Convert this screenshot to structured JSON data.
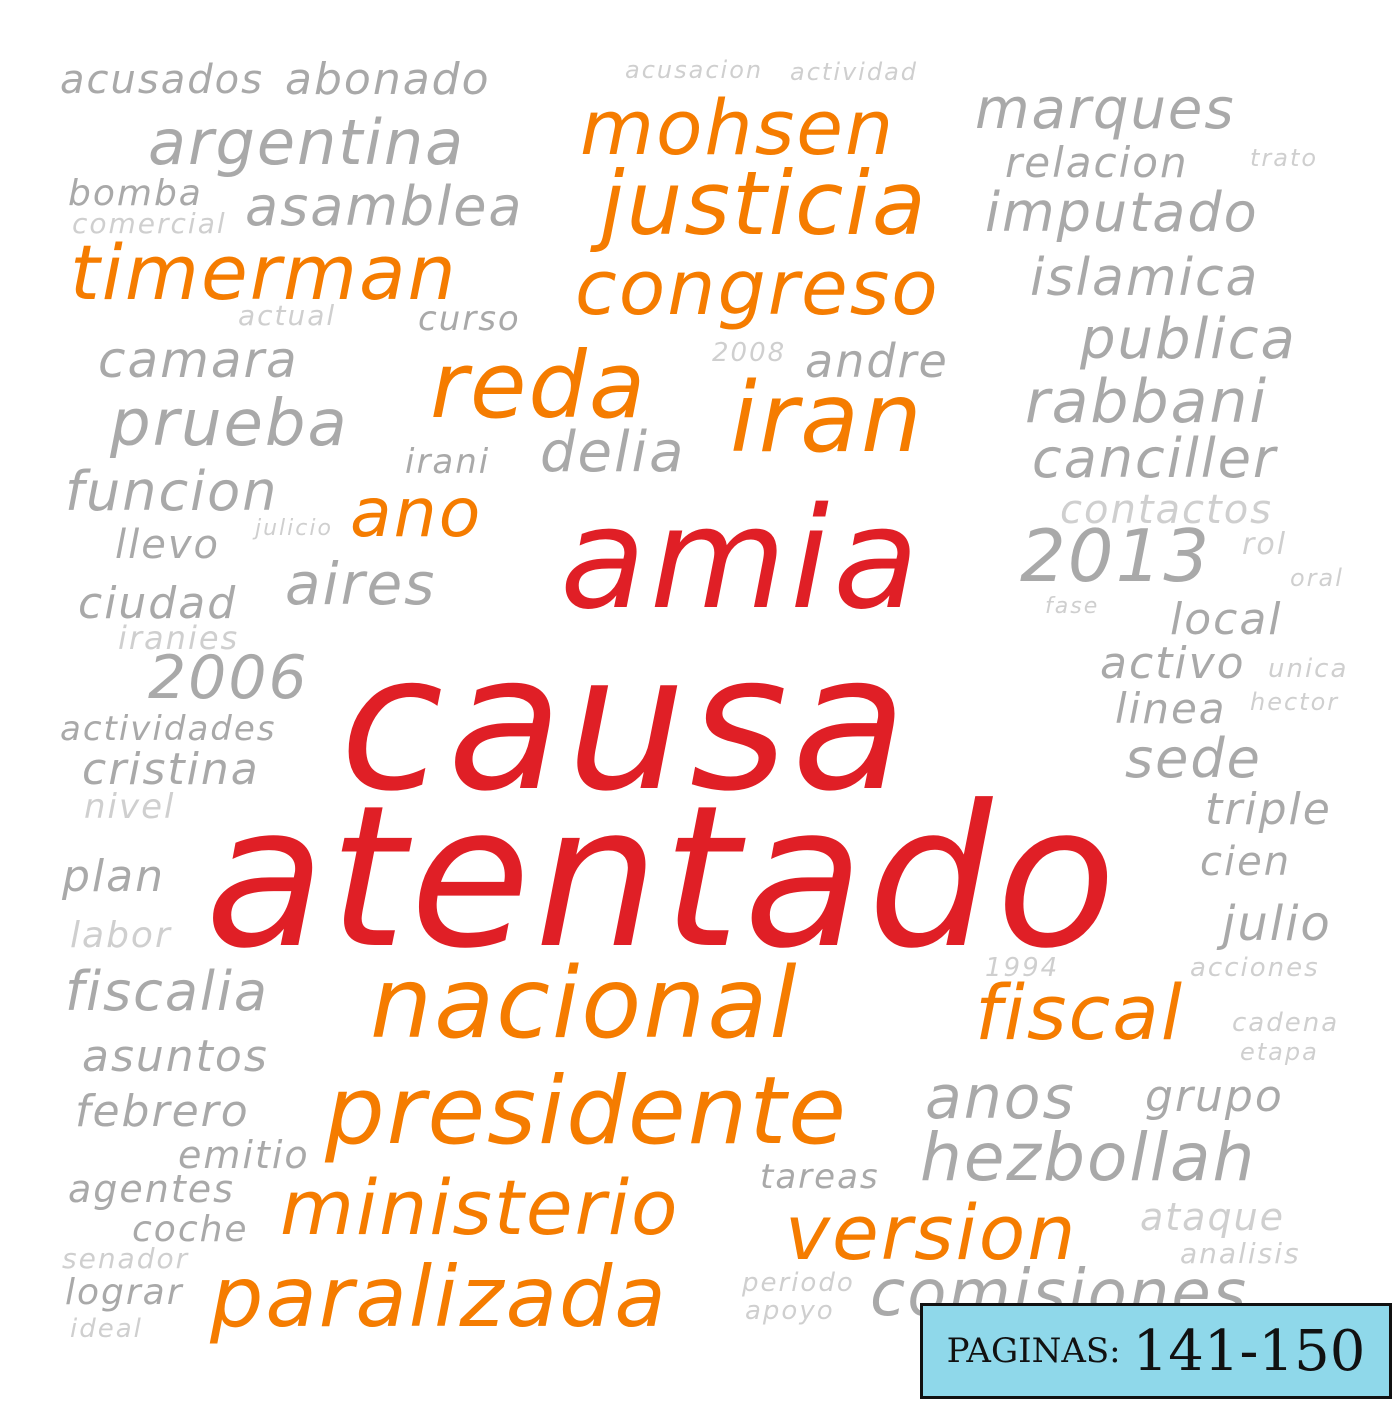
{
  "words": {
    "causa": "causa",
    "atentado": "atentado",
    "amia": "amia",
    "iran": "iran",
    "reda": "reda",
    "ano": "ano",
    "congreso": "congreso",
    "justicia": "justicia",
    "mohsen": "mohsen",
    "timerman": "timerman",
    "nacional": "nacional",
    "fiscal": "fiscal",
    "presidente": "presidente",
    "ministerio": "ministerio",
    "version": "version",
    "paralizada": "paralizada",
    "acusados": "acusados",
    "abonado": "abonado",
    "argentina": "argentina",
    "bomba": "bomba",
    "comercial": "comercial",
    "asamblea": "asamblea",
    "curso": "curso",
    "actual": "actual",
    "camara": "camara",
    "prueba": "prueba",
    "funcion": "funcion",
    "llevo": "llevo",
    "aires": "aires",
    "ciudad": "ciudad",
    "iranies": "iranies",
    "y2006": "2006",
    "actividades": "actividades",
    "cristina": "cristina",
    "nivel": "nivel",
    "plan": "plan",
    "labor": "labor",
    "fiscalia": "fiscalia",
    "asuntos": "asuntos",
    "febrero": "febrero",
    "emitio": "emitio",
    "agentes": "agentes",
    "coche": "coche",
    "senador": "senador",
    "lograr": "lograr",
    "ideal": "ideal",
    "marques": "marques",
    "relacion": "relacion",
    "imputado": "imputado",
    "islamica": "islamica",
    "publica": "publica",
    "rabbani": "rabbani",
    "canciller": "canciller",
    "contactos": "contactos",
    "y2013": "2013",
    "rol": "rol",
    "oral": "oral",
    "local": "local",
    "activo": "activo",
    "unica": "unica",
    "linea": "linea",
    "hector": "hector",
    "sede": "sede",
    "triple": "triple",
    "cien": "cien",
    "julio": "julio",
    "acciones": "acciones",
    "cadena": "cadena",
    "etapa": "etapa",
    "grupo": "grupo",
    "anos": "anos",
    "hezbollah": "hezbollah",
    "ataque": "ataque",
    "analisis": "analisis",
    "comisiones": "comisiones",
    "tareas": "tareas",
    "periodo": "periodo",
    "apoyo": "apoyo",
    "andre": "andre",
    "delia": "delia",
    "irani": "irani",
    "y2008": "2008",
    "y1994": "1994",
    "acusacion": "acusacion",
    "actividad": "actividad",
    "fase": "fase",
    "trato": "trato",
    "julicio": "julicio"
  },
  "badge": {
    "label": "PAGINAS:",
    "pages": "141-150"
  },
  "colors": {
    "red": "#e01f26",
    "orange": "#f57c00",
    "gray": "#a9a9a9",
    "light_gray": "#cfcfcf",
    "badge_bg": "#8fd8ea"
  }
}
